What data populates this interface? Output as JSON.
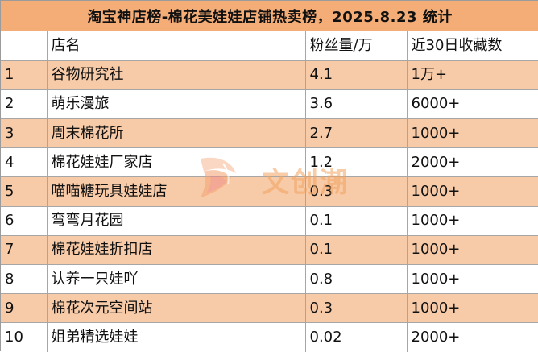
{
  "title": "淘宝神店榜-棉花美娃娃店铺热卖榜，2025.8.23 统计",
  "table": {
    "headers": [
      "",
      "店名",
      "粉丝量/万",
      "近30日收藏数"
    ],
    "rows": [
      {
        "rank": "1",
        "name": "谷物研究社",
        "fans": "4.1",
        "favorites": "1万+"
      },
      {
        "rank": "2",
        "name": "萌乐漫旅",
        "fans": "3.6",
        "favorites": "6000+"
      },
      {
        "rank": "3",
        "name": "周末棉花所",
        "fans": "2.7",
        "favorites": "1000+"
      },
      {
        "rank": "4",
        "name": "棉花娃娃厂家店",
        "fans": "1.2",
        "favorites": "2000+"
      },
      {
        "rank": "5",
        "name": "喵喵糖玩具娃娃店",
        "fans": "0.3",
        "favorites": "1000+"
      },
      {
        "rank": "6",
        "name": "弯弯月花园",
        "fans": "0.1",
        "favorites": "1000+"
      },
      {
        "rank": "7",
        "name": "棉花娃娃折扣店",
        "fans": "0.1",
        "favorites": "1000+"
      },
      {
        "rank": "8",
        "name": "认养一只娃吖",
        "fans": "0.8",
        "favorites": "1000+"
      },
      {
        "rank": "9",
        "name": "棉花次元空间站",
        "fans": "0.3",
        "favorites": "1000+"
      },
      {
        "rank": "10",
        "name": "姐弟精选娃娃",
        "fans": "0.02",
        "favorites": "2000+"
      }
    ]
  },
  "watermark": {
    "text": "文创潮",
    "logo_icon": "wenchuangchao-logo-icon"
  },
  "colors": {
    "header_fill": "#f5ad78",
    "row_band_fill": "#f8cba8",
    "grid": "#a6a6a6",
    "watermark": "#f2a35e"
  }
}
